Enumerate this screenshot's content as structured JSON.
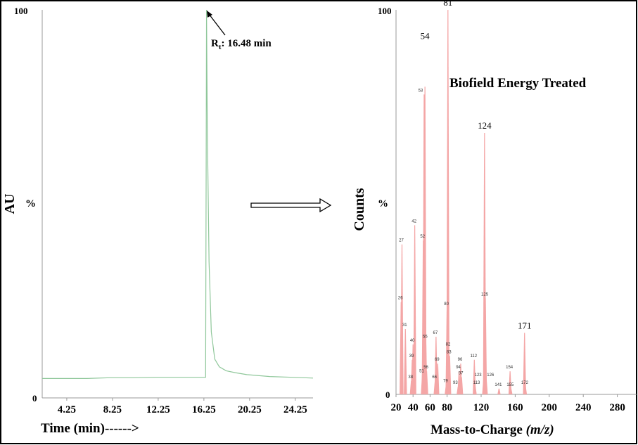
{
  "chart_data": [
    {
      "type": "line",
      "xlabel": "Time (min)------>",
      "ylabel": "AU",
      "y_unit_label": "%",
      "xlim": [
        2.1,
        25.8
      ],
      "ylim": [
        0,
        100
      ],
      "y_tick_labels": [
        "0",
        "100"
      ],
      "x_tick_labels": [
        "4.25",
        "8.25",
        "12.25",
        "16.25",
        "20.25",
        "24.25"
      ],
      "x_ticks": [
        4.25,
        8.25,
        12.25,
        16.25,
        20.25,
        24.25
      ],
      "annotation": {
        "text_main": "R",
        "text_sub": "t",
        "text_rest": ": 16.48 min",
        "x": 16.48,
        "y": 100
      },
      "line_color": "#8fc79a",
      "series": [
        {
          "x": [
            2.1,
            4,
            6,
            8,
            10,
            12,
            14,
            16,
            16.4,
            16.45,
            16.48,
            16.55,
            16.7,
            16.9,
            17.2,
            17.6,
            18.2,
            19,
            20,
            22,
            24,
            25.8
          ],
          "y": [
            5,
            5,
            5,
            5.2,
            5.2,
            5.3,
            5.3,
            5.3,
            5.3,
            60,
            100,
            70,
            35,
            17,
            10,
            8,
            7,
            6.5,
            6,
            5.5,
            5.3,
            5.1
          ]
        }
      ]
    },
    {
      "type": "bar",
      "title": "Biofield Energy Treated",
      "xlabel": "Mass-to-Charge",
      "xlabel_italic": "(m/z)",
      "ylabel": "Counts",
      "y_unit_label": "%",
      "xlim": [
        20,
        290
      ],
      "ylim": [
        0,
        100
      ],
      "y_tick_labels": [
        "0",
        "100"
      ],
      "x_ticks": [
        20,
        40,
        60,
        80,
        120,
        160,
        200,
        240,
        280
      ],
      "x_tick_labels": [
        "20",
        "40",
        "60",
        "80",
        "120",
        "160",
        "200",
        "240",
        "280"
      ],
      "bar_color": "#f4a6a6",
      "large_labels": [
        54,
        81,
        124,
        171
      ],
      "peaks": [
        {
          "mz": 26,
          "value": 24
        },
        {
          "mz": 27,
          "value": 39
        },
        {
          "mz": 31,
          "value": 17
        },
        {
          "mz": 38,
          "value": 3.5
        },
        {
          "mz": 39,
          "value": 9
        },
        {
          "mz": 40,
          "value": 13
        },
        {
          "mz": 42,
          "value": 44
        },
        {
          "mz": 51,
          "value": 5
        },
        {
          "mz": 52,
          "value": 40
        },
        {
          "mz": 53,
          "value": 78
        },
        {
          "mz": 54,
          "value": 80
        },
        {
          "mz": 55,
          "value": 14
        },
        {
          "mz": 56,
          "value": 6
        },
        {
          "mz": 66,
          "value": 3.5
        },
        {
          "mz": 67,
          "value": 15
        },
        {
          "mz": 69,
          "value": 8
        },
        {
          "mz": 79,
          "value": 2.5
        },
        {
          "mz": 80,
          "value": 22.5
        },
        {
          "mz": 81,
          "value": 100
        },
        {
          "mz": 82,
          "value": 12
        },
        {
          "mz": 83,
          "value": 10
        },
        {
          "mz": 93,
          "value": 2
        },
        {
          "mz": 94,
          "value": 6
        },
        {
          "mz": 96,
          "value": 8
        },
        {
          "mz": 97,
          "value": 4.5
        },
        {
          "mz": 112,
          "value": 9
        },
        {
          "mz": 113,
          "value": 2
        },
        {
          "mz": 123,
          "value": 4
        },
        {
          "mz": 124,
          "value": 68
        },
        {
          "mz": 125,
          "value": 25
        },
        {
          "mz": 126,
          "value": 4
        },
        {
          "mz": 141,
          "value": 1.5
        },
        {
          "mz": 154,
          "value": 6
        },
        {
          "mz": 155,
          "value": 1.5
        },
        {
          "mz": 171,
          "value": 16
        },
        {
          "mz": 172,
          "value": 2
        }
      ]
    }
  ]
}
